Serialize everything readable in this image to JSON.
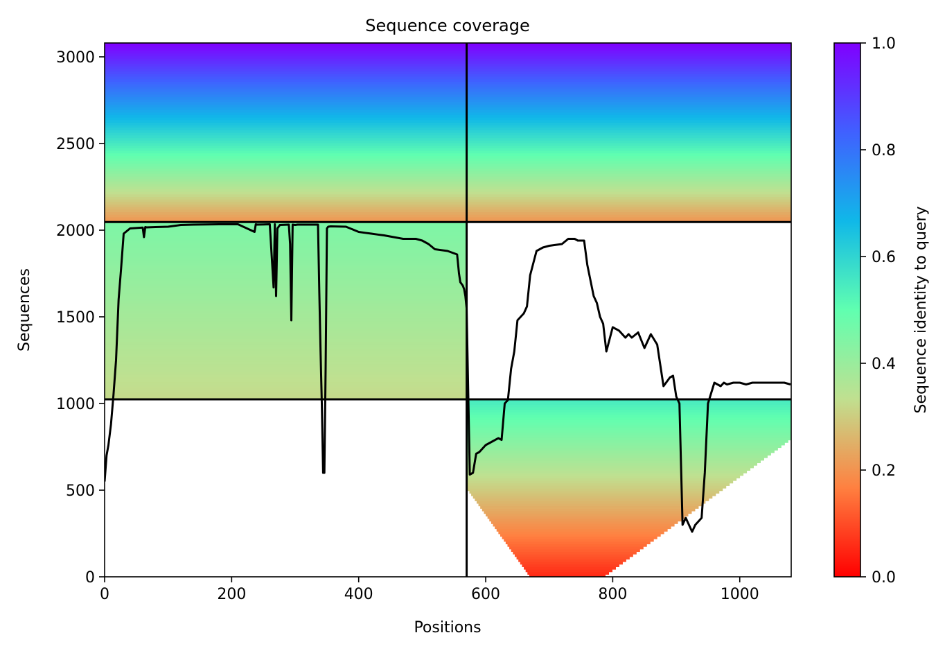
{
  "chart_data": {
    "type": "heatmap",
    "title": "Sequence coverage",
    "xlabel": "Positions",
    "ylabel": "Sequences",
    "xlim": [
      0,
      1081
    ],
    "ylim": [
      0,
      3080
    ],
    "x_ticks": [
      0,
      200,
      400,
      600,
      800,
      1000
    ],
    "y_ticks": [
      0,
      500,
      1000,
      1500,
      2000,
      2500,
      3000
    ],
    "colorbar": {
      "label": "Sequence identity to query",
      "range": [
        0,
        1
      ],
      "ticks": [
        "0.0",
        "0.2",
        "0.4",
        "0.6",
        "0.8",
        "1.0"
      ],
      "colormap": [
        "#ff0000",
        "#ff8040",
        "#c0e090",
        "#60ffb0",
        "#10b8e8",
        "#4060ff",
        "#8000ff"
      ]
    },
    "grid": false,
    "divider_lines": {
      "vertical_x": 570,
      "horizontal_y": [
        1024,
        2047
      ]
    },
    "blocks": [
      {
        "block": "top-left",
        "x": [
          0,
          570
        ],
        "rows": [
          2047,
          3080
        ],
        "identity": [
          0.2,
          1.0
        ]
      },
      {
        "block": "top-right",
        "x": [
          570,
          1081
        ],
        "rows": [
          2047,
          3080
        ],
        "identity": [
          0.2,
          1.0
        ]
      },
      {
        "block": "middle-left",
        "x": [
          0,
          570
        ],
        "rows": [
          1024,
          2047
        ],
        "identity": [
          0.32,
          0.45
        ]
      },
      {
        "block": "bottom-right",
        "x": [
          570,
          1081
        ],
        "rows": [
          0,
          1024
        ],
        "identity": [
          0.05,
          0.55
        ]
      }
    ],
    "coverage_line": {
      "color": "#000000",
      "x": [
        0,
        3,
        6,
        10,
        14,
        18,
        22,
        26,
        30,
        40,
        60,
        62,
        64,
        66,
        80,
        100,
        120,
        140,
        180,
        210,
        236,
        238,
        240,
        260,
        266,
        268,
        270,
        272,
        276,
        290,
        292,
        294,
        296,
        300,
        304,
        336,
        338,
        340,
        342,
        344,
        346,
        348,
        350,
        352,
        356,
        380,
        400,
        410,
        420,
        430,
        440,
        470,
        490,
        500,
        510,
        520,
        540,
        555,
        558,
        560,
        562,
        564,
        566,
        568,
        570,
        575,
        580,
        585,
        590,
        600,
        610,
        620,
        625,
        630,
        635,
        640,
        645,
        650,
        660,
        665,
        670,
        680,
        690,
        700,
        720,
        730,
        740,
        745,
        750,
        755,
        760,
        770,
        775,
        780,
        785,
        790,
        800,
        810,
        820,
        825,
        830,
        840,
        850,
        860,
        870,
        880,
        890,
        895,
        900,
        905,
        910,
        915,
        920,
        925,
        930,
        935,
        940,
        945,
        950,
        960,
        970,
        975,
        980,
        990,
        1000,
        1010,
        1020,
        1040,
        1060,
        1070,
        1080
      ],
      "y": [
        550,
        700,
        760,
        880,
        1050,
        1250,
        1600,
        1780,
        1980,
        2010,
        2015,
        1960,
        2018,
        2016,
        2018,
        2020,
        2030,
        2032,
        2034,
        2034,
        1990,
        2034,
        2032,
        2034,
        1670,
        2034,
        1620,
        2010,
        2030,
        2032,
        1920,
        1480,
        2032,
        2030,
        2032,
        2032,
        1640,
        1300,
        1000,
        600,
        600,
        1200,
        2010,
        2020,
        2022,
        2020,
        1990,
        1985,
        1980,
        1975,
        1970,
        1950,
        1950,
        1940,
        1920,
        1890,
        1880,
        1860,
        1750,
        1700,
        1690,
        1680,
        1660,
        1620,
        1550,
        590,
        600,
        710,
        720,
        760,
        780,
        800,
        790,
        1000,
        1020,
        1200,
        1300,
        1480,
        1520,
        1560,
        1740,
        1880,
        1900,
        1910,
        1920,
        1950,
        1950,
        1940,
        1940,
        1940,
        1800,
        1620,
        1580,
        1500,
        1460,
        1300,
        1440,
        1420,
        1380,
        1400,
        1380,
        1410,
        1320,
        1400,
        1340,
        1100,
        1150,
        1160,
        1040,
        1000,
        300,
        340,
        300,
        260,
        300,
        320,
        340,
        600,
        1000,
        1120,
        1100,
        1120,
        1110,
        1120,
        1120,
        1110,
        1120,
        1120,
        1120,
        1120,
        1110
      ]
    }
  }
}
